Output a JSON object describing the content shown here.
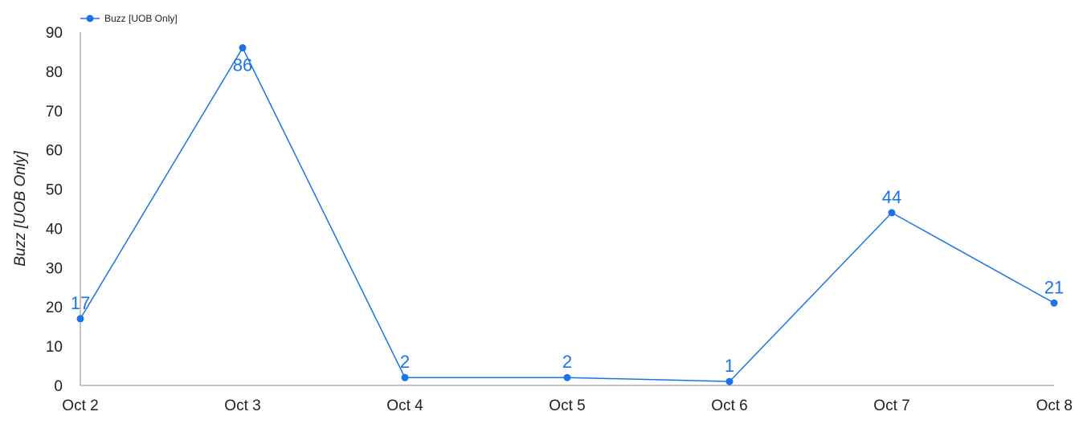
{
  "chart_data": {
    "type": "line",
    "categories": [
      "Oct 2",
      "Oct 3",
      "Oct 4",
      "Oct 5",
      "Oct 6",
      "Oct 7",
      "Oct 8"
    ],
    "series": [
      {
        "name": "Buzz [UOB Only]",
        "values": [
          17,
          86,
          2,
          2,
          1,
          44,
          21
        ],
        "color": "#1a73e8"
      }
    ],
    "title": "",
    "xlabel": "",
    "ylabel": "Buzz [UOB Only]",
    "ylim": [
      0,
      90
    ],
    "yticks": [
      0,
      10,
      20,
      30,
      40,
      50,
      60,
      70,
      80,
      90
    ],
    "grid": false,
    "legend_position": "top-left",
    "data_labels": true
  }
}
